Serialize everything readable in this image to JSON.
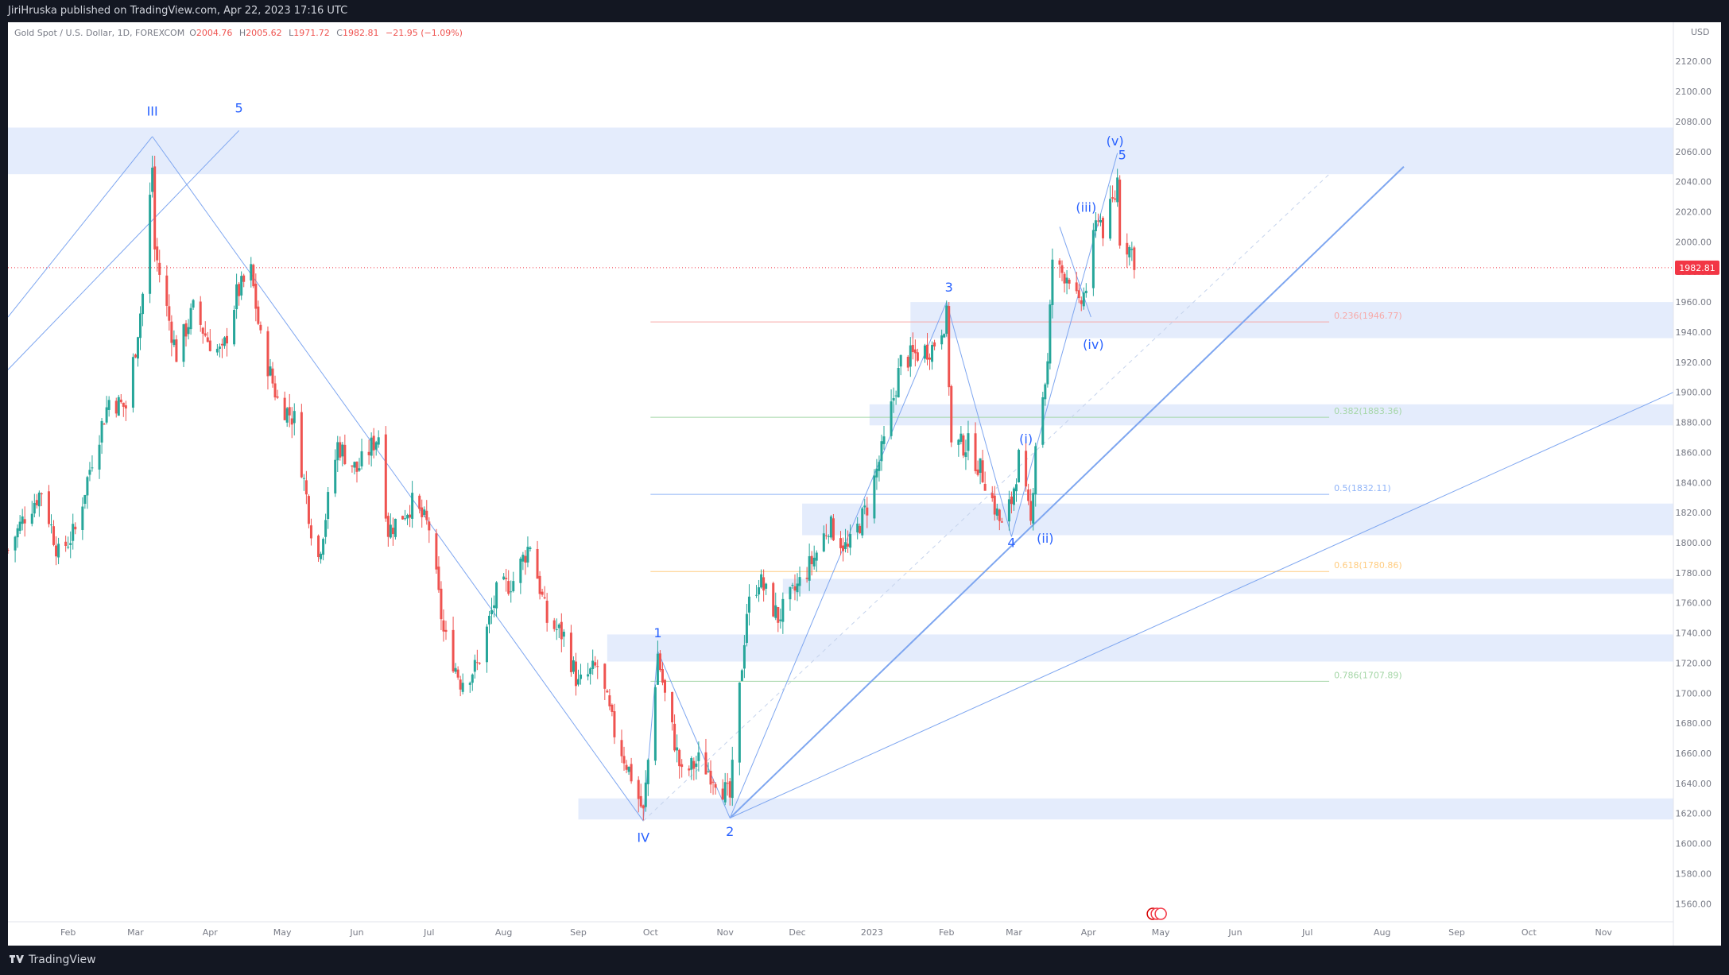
{
  "header": {
    "published": "JiriHruska published on TradingView.com, Apr 22, 2023 17:16 UTC",
    "symbol": "Gold Spot / U.S. Dollar, 1D, FOREXCOM",
    "ohlc": {
      "o_label": "O",
      "o": "2004.76",
      "h_label": "H",
      "h": "2005.62",
      "l_label": "L",
      "l": "1971.72",
      "c_label": "C",
      "c": "1982.81",
      "change": "−21.95 (−1.09%)"
    }
  },
  "footer": {
    "brand": "TradingView"
  },
  "colors": {
    "up": "#26a69a",
    "down": "#ef5350",
    "wave": "#2962ff",
    "line": "#7ea6f0",
    "zone": "#dde7fb",
    "price_tag": "#f23645"
  },
  "chart_data": {
    "type": "candlestick",
    "currency": "USD",
    "last_price": 1982.81,
    "last_price_label": "1982.81",
    "ylim": [
      1548,
      2146
    ],
    "y_ticks": [
      1560,
      1580,
      1600,
      1620,
      1640,
      1660,
      1680,
      1700,
      1720,
      1740,
      1760,
      1780,
      1800,
      1820,
      1840,
      1860,
      1880,
      1900,
      1920,
      1940,
      1960,
      1980,
      2000,
      2020,
      2040,
      2060,
      2080,
      2100,
      2120
    ],
    "x_range": [
      "2022-01-07",
      "2023-11-30"
    ],
    "x_ticks": [
      {
        "date": "2022-02-01",
        "label": "Feb"
      },
      {
        "date": "2022-03-01",
        "label": "Mar"
      },
      {
        "date": "2022-04-01",
        "label": "Apr"
      },
      {
        "date": "2022-05-01",
        "label": "May"
      },
      {
        "date": "2022-06-01",
        "label": "Jun"
      },
      {
        "date": "2022-07-01",
        "label": "Jul"
      },
      {
        "date": "2022-08-01",
        "label": "Aug"
      },
      {
        "date": "2022-09-01",
        "label": "Sep"
      },
      {
        "date": "2022-10-01",
        "label": "Oct"
      },
      {
        "date": "2022-11-01",
        "label": "Nov"
      },
      {
        "date": "2022-12-01",
        "label": "Dec"
      },
      {
        "date": "2023-01-01",
        "label": "2023"
      },
      {
        "date": "2023-02-01",
        "label": "Feb"
      },
      {
        "date": "2023-03-01",
        "label": "Mar"
      },
      {
        "date": "2023-04-01",
        "label": "Apr"
      },
      {
        "date": "2023-05-01",
        "label": "May"
      },
      {
        "date": "2023-06-01",
        "label": "Jun"
      },
      {
        "date": "2023-07-01",
        "label": "Jul"
      },
      {
        "date": "2023-08-01",
        "label": "Aug"
      },
      {
        "date": "2023-09-01",
        "label": "Sep"
      },
      {
        "date": "2023-10-01",
        "label": "Oct"
      },
      {
        "date": "2023-11-01",
        "label": "Nov"
      }
    ],
    "price_path": [
      [
        "2022-01-07",
        1795
      ],
      [
        "2022-01-14",
        1818
      ],
      [
        "2022-01-21",
        1835
      ],
      [
        "2022-01-28",
        1792
      ],
      [
        "2022-02-04",
        1808
      ],
      [
        "2022-02-11",
        1856
      ],
      [
        "2022-02-18",
        1895
      ],
      [
        "2022-02-25",
        1890
      ],
      [
        "2022-03-01",
        1930
      ],
      [
        "2022-03-04",
        1965
      ],
      [
        "2022-03-08",
        2050
      ],
      [
        "2022-03-09",
        1995
      ],
      [
        "2022-03-14",
        1955
      ],
      [
        "2022-03-18",
        1925
      ],
      [
        "2022-03-25",
        1955
      ],
      [
        "2022-03-31",
        1935
      ],
      [
        "2022-04-06",
        1925
      ],
      [
        "2022-04-12",
        1965
      ],
      [
        "2022-04-18",
        1980
      ],
      [
        "2022-04-22",
        1935
      ],
      [
        "2022-04-29",
        1895
      ],
      [
        "2022-05-06",
        1882
      ],
      [
        "2022-05-13",
        1810
      ],
      [
        "2022-05-16",
        1790
      ],
      [
        "2022-05-24",
        1865
      ],
      [
        "2022-06-01",
        1848
      ],
      [
        "2022-06-10",
        1872
      ],
      [
        "2022-06-14",
        1808
      ],
      [
        "2022-06-24",
        1826
      ],
      [
        "2022-07-01",
        1810
      ],
      [
        "2022-07-07",
        1740
      ],
      [
        "2022-07-14",
        1708
      ],
      [
        "2022-07-21",
        1718
      ],
      [
        "2022-07-29",
        1766
      ],
      [
        "2022-08-05",
        1775
      ],
      [
        "2022-08-12",
        1800
      ],
      [
        "2022-08-19",
        1748
      ],
      [
        "2022-08-26",
        1738
      ],
      [
        "2022-09-01",
        1705
      ],
      [
        "2022-09-09",
        1718
      ],
      [
        "2022-09-16",
        1674
      ],
      [
        "2022-09-23",
        1645
      ],
      [
        "2022-09-28",
        1620
      ],
      [
        "2022-10-04",
        1726
      ],
      [
        "2022-10-07",
        1698
      ],
      [
        "2022-10-14",
        1645
      ],
      [
        "2022-10-21",
        1655
      ],
      [
        "2022-10-28",
        1644
      ],
      [
        "2022-11-03",
        1630
      ],
      [
        "2022-11-10",
        1755
      ],
      [
        "2022-11-15",
        1776
      ],
      [
        "2022-11-23",
        1750
      ],
      [
        "2022-11-30",
        1768
      ],
      [
        "2022-12-08",
        1790
      ],
      [
        "2022-12-14",
        1812
      ],
      [
        "2022-12-22",
        1795
      ],
      [
        "2022-12-30",
        1824
      ],
      [
        "2023-01-06",
        1866
      ],
      [
        "2023-01-13",
        1920
      ],
      [
        "2023-01-20",
        1926
      ],
      [
        "2023-01-26",
        1930
      ],
      [
        "2023-02-01",
        1950
      ],
      [
        "2023-02-03",
        1865
      ],
      [
        "2023-02-10",
        1865
      ],
      [
        "2023-02-17",
        1842
      ],
      [
        "2023-02-24",
        1810
      ],
      [
        "2023-02-28",
        1828
      ],
      [
        "2023-03-03",
        1856
      ],
      [
        "2023-03-08",
        1812
      ],
      [
        "2023-03-10",
        1868
      ],
      [
        "2023-03-15",
        1918
      ],
      [
        "2023-03-17",
        1989
      ],
      [
        "2023-03-20",
        1980
      ],
      [
        "2023-03-24",
        1978
      ],
      [
        "2023-03-28",
        1955
      ],
      [
        "2023-03-31",
        1970
      ],
      [
        "2023-04-05",
        2020
      ],
      [
        "2023-04-07",
        2008
      ],
      [
        "2023-04-12",
        2030
      ],
      [
        "2023-04-13",
        2042
      ],
      [
        "2023-04-14",
        2003
      ],
      [
        "2023-04-19",
        1994
      ],
      [
        "2023-04-21",
        1982.81
      ]
    ],
    "fibonacci": [
      {
        "level": "0.236",
        "price": 1946.77,
        "label": "0.236(1946.77)",
        "color": "#f7a9a8"
      },
      {
        "level": "0.382",
        "price": 1883.36,
        "label": "0.382(1883.36)",
        "color": "#a5d6a7"
      },
      {
        "level": "0.5",
        "price": 1832.11,
        "label": "0.5(1832.11)",
        "color": "#90b4f8"
      },
      {
        "level": "0.618",
        "price": 1780.86,
        "label": "0.618(1780.86)",
        "color": "#ffcc80"
      },
      {
        "level": "0.786",
        "price": 1707.89,
        "label": "0.786(1707.89)",
        "color": "#a5d6a7"
      }
    ],
    "fib_range": [
      "2022-10-01",
      "2023-07-10"
    ],
    "zones": [
      {
        "from": 2045,
        "to": 2076,
        "start": "2022-01-07",
        "end": "2023-11-30"
      },
      {
        "from": 1936,
        "to": 1960,
        "start": "2023-01-17",
        "end": "2023-11-30"
      },
      {
        "from": 1878,
        "to": 1892,
        "start": "2022-12-31",
        "end": "2023-11-30"
      },
      {
        "from": 1805,
        "to": 1826,
        "start": "2022-12-03",
        "end": "2023-11-30"
      },
      {
        "from": 1766,
        "to": 1776,
        "start": "2022-11-25",
        "end": "2023-11-30"
      },
      {
        "from": 1721,
        "to": 1739,
        "start": "2022-09-13",
        "end": "2023-11-30"
      },
      {
        "from": 1616,
        "to": 1630,
        "start": "2022-09-01",
        "end": "2023-11-30"
      }
    ],
    "wave_labels": [
      {
        "text": "III",
        "date": "2022-03-08",
        "price": 2084
      },
      {
        "text": "5",
        "date": "2022-04-13",
        "price": 2086
      },
      {
        "text": "IV",
        "date": "2022-09-28",
        "price": 1601
      },
      {
        "text": "1",
        "date": "2022-10-04",
        "price": 1737
      },
      {
        "text": "2",
        "date": "2022-11-03",
        "price": 1605
      },
      {
        "text": "3",
        "date": "2023-02-02",
        "price": 1967
      },
      {
        "text": "4",
        "date": "2023-02-28",
        "price": 1797
      },
      {
        "text": "(i)",
        "date": "2023-03-06",
        "price": 1866
      },
      {
        "text": "(ii)",
        "date": "2023-03-14",
        "price": 1800
      },
      {
        "text": "(iii)",
        "date": "2023-03-31",
        "price": 2020
      },
      {
        "text": "(iv)",
        "date": "2023-04-03",
        "price": 1929
      },
      {
        "text": "(v)",
        "date": "2023-04-12",
        "price": 2064
      },
      {
        "text": "5",
        "date": "2023-04-15",
        "price": 2055
      }
    ]
  }
}
